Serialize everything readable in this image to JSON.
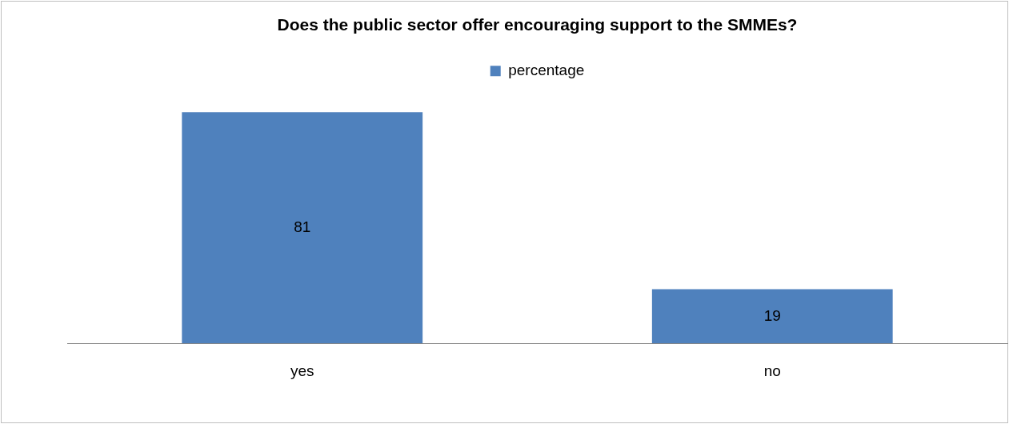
{
  "chart_data": {
    "type": "bar",
    "title": "Does the public sector offer encouraging support to the SMMEs?",
    "categories": [
      "yes",
      "no"
    ],
    "series": [
      {
        "name": "percentage",
        "color": "#4f81bd",
        "values": [
          81,
          19
        ]
      }
    ],
    "data_labels": true,
    "legend": "top",
    "grid": false
  }
}
